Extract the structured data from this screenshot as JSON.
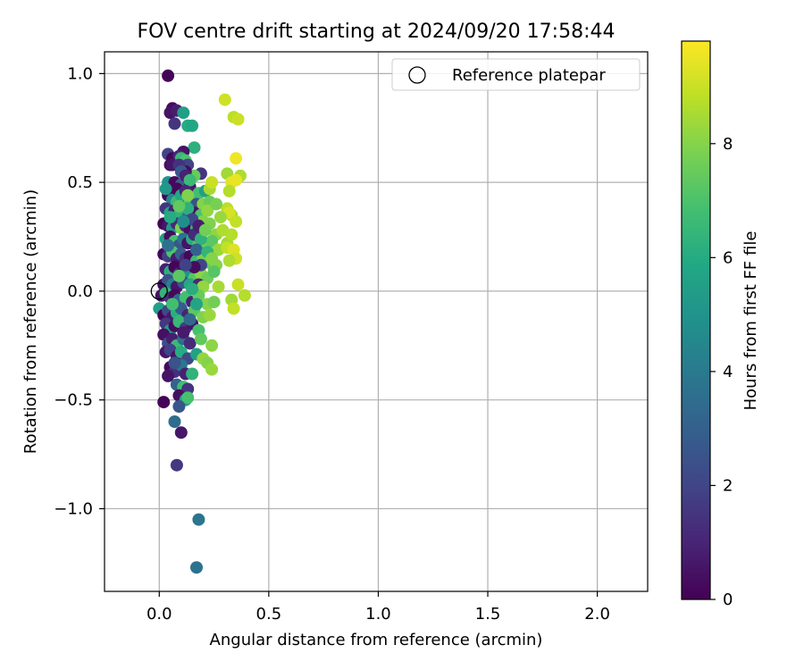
{
  "chart_data": {
    "type": "scatter",
    "title": "FOV centre drift starting at 2024/09/20 17:58:44",
    "xlabel": "Angular distance from reference (arcmin)",
    "ylabel": "Rotation from reference (arcmin)",
    "xlim": [
      -0.25,
      2.23
    ],
    "ylim": [
      -1.38,
      1.1
    ],
    "xticks": [
      0.0,
      0.5,
      1.0,
      1.5,
      2.0
    ],
    "xtick_labels": [
      "0.0",
      "0.5",
      "1.0",
      "1.5",
      "2.0"
    ],
    "yticks": [
      -1.0,
      -0.5,
      0.0,
      0.5,
      1.0
    ],
    "ytick_labels": [
      "−1.0",
      "−0.5",
      "0.0",
      "0.5",
      "1.0"
    ],
    "grid": true,
    "legend": {
      "position": "top-right",
      "entries": [
        {
          "label": "Reference platepar",
          "marker": "open-circle",
          "x": 0.0,
          "y": 0.0
        }
      ]
    },
    "colorbar": {
      "label": "Hours from first FF file",
      "range": [
        0,
        9.8
      ],
      "ticks": [
        0,
        2,
        4,
        6,
        8
      ],
      "tick_labels": [
        "0",
        "2",
        "4",
        "6",
        "8"
      ],
      "colormap": "viridis"
    },
    "points": [
      [
        0.04,
        0.99,
        0.1
      ],
      [
        0.06,
        0.84,
        0.3
      ],
      [
        0.05,
        0.82,
        0.5
      ],
      [
        0.07,
        0.77,
        1.5
      ],
      [
        0.08,
        0.83,
        0.8
      ],
      [
        0.11,
        0.82,
        5.5
      ],
      [
        0.13,
        0.76,
        6.0
      ],
      [
        0.15,
        0.76,
        5.8
      ],
      [
        0.16,
        0.66,
        6.2
      ],
      [
        0.11,
        0.64,
        0.5
      ],
      [
        0.04,
        0.63,
        2.0
      ],
      [
        0.06,
        0.61,
        0.2
      ],
      [
        0.09,
        0.62,
        1.0
      ],
      [
        0.1,
        0.61,
        6.5
      ],
      [
        0.12,
        0.6,
        7.0
      ],
      [
        0.05,
        0.58,
        0.4
      ],
      [
        0.13,
        0.58,
        2.0
      ],
      [
        0.19,
        0.54,
        1.5
      ],
      [
        0.16,
        0.53,
        7.5
      ],
      [
        0.12,
        0.55,
        0.3
      ],
      [
        0.04,
        0.5,
        5.0
      ],
      [
        0.07,
        0.5,
        0.2
      ],
      [
        0.1,
        0.49,
        3.0
      ],
      [
        0.14,
        0.48,
        0.6
      ],
      [
        0.18,
        0.45,
        6.8
      ],
      [
        0.21,
        0.46,
        5.5
      ],
      [
        0.23,
        0.47,
        8.5
      ],
      [
        0.24,
        0.5,
        9.0
      ],
      [
        0.3,
        0.88,
        9.1
      ],
      [
        0.34,
        0.8,
        8.8
      ],
      [
        0.36,
        0.79,
        9.0
      ],
      [
        0.35,
        0.61,
        9.6
      ],
      [
        0.31,
        0.54,
        8.4
      ],
      [
        0.37,
        0.53,
        8.6
      ],
      [
        0.33,
        0.5,
        9.4
      ],
      [
        0.35,
        0.51,
        9.5
      ],
      [
        0.32,
        0.46,
        8.7
      ],
      [
        0.04,
        0.44,
        0.1
      ],
      [
        0.06,
        0.42,
        4.5
      ],
      [
        0.08,
        0.41,
        6.7
      ],
      [
        0.11,
        0.42,
        0.8
      ],
      [
        0.14,
        0.41,
        7.2
      ],
      [
        0.17,
        0.4,
        2.5
      ],
      [
        0.2,
        0.4,
        8.0
      ],
      [
        0.23,
        0.41,
        7.5
      ],
      [
        0.03,
        0.38,
        1.5
      ],
      [
        0.05,
        0.36,
        5.8
      ],
      [
        0.07,
        0.37,
        0.9
      ],
      [
        0.09,
        0.35,
        6.3
      ],
      [
        0.13,
        0.34,
        3.4
      ],
      [
        0.16,
        0.36,
        0.5
      ],
      [
        0.19,
        0.35,
        7.0
      ],
      [
        0.22,
        0.37,
        8.2
      ],
      [
        0.31,
        0.38,
        8.8
      ],
      [
        0.33,
        0.35,
        8.5
      ],
      [
        0.32,
        0.36,
        9.2
      ],
      [
        0.35,
        0.32,
        8.9
      ],
      [
        0.02,
        0.31,
        0.1
      ],
      [
        0.04,
        0.3,
        0.6
      ],
      [
        0.06,
        0.29,
        5.2
      ],
      [
        0.08,
        0.31,
        1.2
      ],
      [
        0.1,
        0.29,
        7.8
      ],
      [
        0.12,
        0.3,
        1.0
      ],
      [
        0.14,
        0.28,
        0.4
      ],
      [
        0.17,
        0.29,
        6.5
      ],
      [
        0.2,
        0.32,
        8.0
      ],
      [
        0.23,
        0.31,
        7.9
      ],
      [
        0.26,
        0.26,
        8.1
      ],
      [
        0.29,
        0.28,
        8.6
      ],
      [
        0.31,
        0.22,
        8.4
      ],
      [
        0.33,
        0.26,
        8.7
      ],
      [
        0.03,
        0.24,
        5.6
      ],
      [
        0.05,
        0.25,
        0.3
      ],
      [
        0.07,
        0.23,
        6.9
      ],
      [
        0.09,
        0.21,
        2.6
      ],
      [
        0.11,
        0.24,
        3.7
      ],
      [
        0.13,
        0.22,
        0.5
      ],
      [
        0.15,
        0.24,
        6.0
      ],
      [
        0.18,
        0.22,
        7.1
      ],
      [
        0.21,
        0.2,
        7.6
      ],
      [
        0.24,
        0.23,
        7.3
      ],
      [
        0.27,
        0.19,
        8.3
      ],
      [
        0.31,
        0.2,
        8.9
      ],
      [
        0.34,
        0.19,
        9.3
      ],
      [
        0.35,
        0.15,
        9.1
      ],
      [
        0.02,
        0.17,
        0.2
      ],
      [
        0.04,
        0.16,
        1.8
      ],
      [
        0.06,
        0.18,
        7.0
      ],
      [
        0.08,
        0.15,
        0.7
      ],
      [
        0.1,
        0.17,
        2.9
      ],
      [
        0.12,
        0.15,
        1.3
      ],
      [
        0.14,
        0.16,
        0.2
      ],
      [
        0.17,
        0.14,
        6.6
      ],
      [
        0.2,
        0.15,
        7.8
      ],
      [
        0.23,
        0.13,
        7.4
      ],
      [
        0.26,
        0.12,
        8.0
      ],
      [
        0.32,
        0.14,
        8.6
      ],
      [
        0.03,
        0.1,
        0.9
      ],
      [
        0.05,
        0.09,
        6.2
      ],
      [
        0.07,
        0.11,
        0.1
      ],
      [
        0.09,
        0.08,
        1.6
      ],
      [
        0.11,
        0.1,
        0.4
      ],
      [
        0.13,
        0.09,
        5.0
      ],
      [
        0.16,
        0.06,
        7.2
      ],
      [
        0.19,
        0.08,
        8.1
      ],
      [
        0.22,
        0.06,
        7.6
      ],
      [
        0.02,
        0.03,
        0.3
      ],
      [
        0.04,
        0.05,
        2.4
      ],
      [
        0.06,
        0.03,
        4.2
      ],
      [
        0.08,
        0.02,
        0.6
      ],
      [
        0.11,
        0.04,
        2.6
      ],
      [
        0.14,
        0.03,
        5.9
      ],
      [
        0.18,
        0.03,
        1.1
      ],
      [
        0.2,
        0.02,
        8.2
      ],
      [
        0.27,
        0.02,
        8.5
      ],
      [
        0.36,
        0.03,
        9.0
      ],
      [
        0.39,
        -0.02,
        8.7
      ],
      [
        0.33,
        -0.04,
        8.4
      ],
      [
        0.34,
        -0.08,
        8.9
      ],
      [
        0.01,
        -0.02,
        0.5
      ],
      [
        0.03,
        -0.01,
        6.4
      ],
      [
        0.05,
        -0.03,
        1.4
      ],
      [
        0.07,
        -0.02,
        0.2
      ],
      [
        0.09,
        -0.04,
        3.2
      ],
      [
        0.12,
        -0.03,
        6.8
      ],
      [
        0.15,
        -0.05,
        0.9
      ],
      [
        0.18,
        -0.02,
        7.5
      ],
      [
        0.22,
        -0.06,
        8.0
      ],
      [
        0.25,
        -0.05,
        7.7
      ],
      [
        0.0,
        -0.08,
        5.5
      ],
      [
        0.02,
        -0.11,
        0.1
      ],
      [
        0.04,
        -0.09,
        2.1
      ],
      [
        0.06,
        -0.12,
        0.7
      ],
      [
        0.08,
        -0.1,
        6.1
      ],
      [
        0.1,
        -0.08,
        2.8
      ],
      [
        0.13,
        -0.11,
        1.0
      ],
      [
        0.16,
        -0.09,
        7.3
      ],
      [
        0.2,
        -0.12,
        7.9
      ],
      [
        0.23,
        -0.11,
        8.3
      ],
      [
        0.03,
        -0.15,
        1.6
      ],
      [
        0.05,
        -0.18,
        5.4
      ],
      [
        0.07,
        -0.16,
        0.3
      ],
      [
        0.09,
        -0.14,
        6.5
      ],
      [
        0.12,
        -0.17,
        1.7
      ],
      [
        0.15,
        -0.15,
        0.5
      ],
      [
        0.18,
        -0.18,
        6.9
      ],
      [
        0.02,
        -0.2,
        0.4
      ],
      [
        0.04,
        -0.24,
        2.3
      ],
      [
        0.06,
        -0.22,
        0.8
      ],
      [
        0.08,
        -0.25,
        6.6
      ],
      [
        0.11,
        -0.22,
        3.5
      ],
      [
        0.14,
        -0.24,
        1.2
      ],
      [
        0.19,
        -0.22,
        7.4
      ],
      [
        0.03,
        -0.28,
        0.6
      ],
      [
        0.05,
        -0.27,
        1.9
      ],
      [
        0.08,
        -0.3,
        0.5
      ],
      [
        0.1,
        -0.28,
        6.0
      ],
      [
        0.13,
        -0.31,
        2.2
      ],
      [
        0.17,
        -0.29,
        5.6
      ],
      [
        0.2,
        -0.31,
        8.2
      ],
      [
        0.22,
        -0.33,
        8.0
      ],
      [
        0.24,
        -0.25,
        8.1
      ],
      [
        0.24,
        -0.36,
        8.3
      ],
      [
        0.05,
        -0.35,
        0.2
      ],
      [
        0.07,
        -0.37,
        1.3
      ],
      [
        0.1,
        -0.34,
        3.9
      ],
      [
        0.12,
        -0.38,
        0.9
      ],
      [
        0.15,
        -0.38,
        6.3
      ],
      [
        0.04,
        -0.39,
        0.5
      ],
      [
        0.08,
        -0.43,
        3.1
      ],
      [
        0.11,
        -0.44,
        6.8
      ],
      [
        0.13,
        -0.45,
        1.5
      ],
      [
        0.09,
        -0.48,
        0.4
      ],
      [
        0.12,
        -0.5,
        5.5
      ],
      [
        0.13,
        -0.49,
        6.9
      ],
      [
        0.02,
        -0.51,
        0.1
      ],
      [
        0.09,
        -0.53,
        2.6
      ],
      [
        0.07,
        -0.6,
        3.5
      ],
      [
        0.1,
        -0.65,
        0.6
      ],
      [
        0.08,
        -0.8,
        1.6
      ],
      [
        0.18,
        -1.05,
        3.8
      ],
      [
        0.17,
        -1.27,
        3.7
      ],
      [
        0.06,
        0.58,
        0.6
      ],
      [
        0.09,
        0.58,
        1.4
      ],
      [
        0.1,
        0.55,
        2.7
      ],
      [
        0.12,
        0.53,
        0.9
      ],
      [
        0.14,
        0.51,
        6.6
      ],
      [
        0.08,
        0.47,
        0.2
      ],
      [
        0.1,
        0.44,
        5.9
      ],
      [
        0.12,
        0.46,
        1.1
      ],
      [
        0.13,
        0.38,
        6.2
      ],
      [
        0.15,
        0.33,
        2.1
      ],
      [
        0.16,
        0.26,
        1.2
      ],
      [
        0.18,
        0.3,
        0.8
      ],
      [
        0.19,
        0.24,
        6.3
      ],
      [
        0.17,
        0.19,
        3.1
      ],
      [
        0.21,
        0.28,
        7.7
      ],
      [
        0.22,
        0.18,
        6.4
      ],
      [
        0.24,
        0.15,
        8.0
      ],
      [
        0.25,
        0.09,
        7.2
      ],
      [
        0.19,
        0.12,
        2.0
      ],
      [
        0.16,
        0.11,
        0.3
      ],
      [
        0.15,
        0.01,
        6.1
      ],
      [
        0.17,
        -0.06,
        5.7
      ],
      [
        0.14,
        -0.13,
        3.3
      ],
      [
        0.11,
        -0.19,
        0.7
      ],
      [
        0.07,
        -0.33,
        2.5
      ],
      [
        0.06,
        -0.06,
        6.8
      ],
      [
        0.09,
        0.07,
        7.3
      ],
      [
        0.12,
        0.12,
        1.9
      ],
      [
        0.04,
        0.21,
        3.6
      ],
      [
        0.05,
        0.34,
        6.0
      ],
      [
        0.03,
        0.47,
        5.2
      ],
      [
        0.09,
        0.39,
        7.4
      ],
      [
        0.11,
        0.32,
        4.8
      ],
      [
        0.13,
        0.44,
        7.9
      ],
      [
        0.28,
        0.34,
        8.3
      ],
      [
        0.26,
        0.4,
        7.8
      ]
    ]
  }
}
